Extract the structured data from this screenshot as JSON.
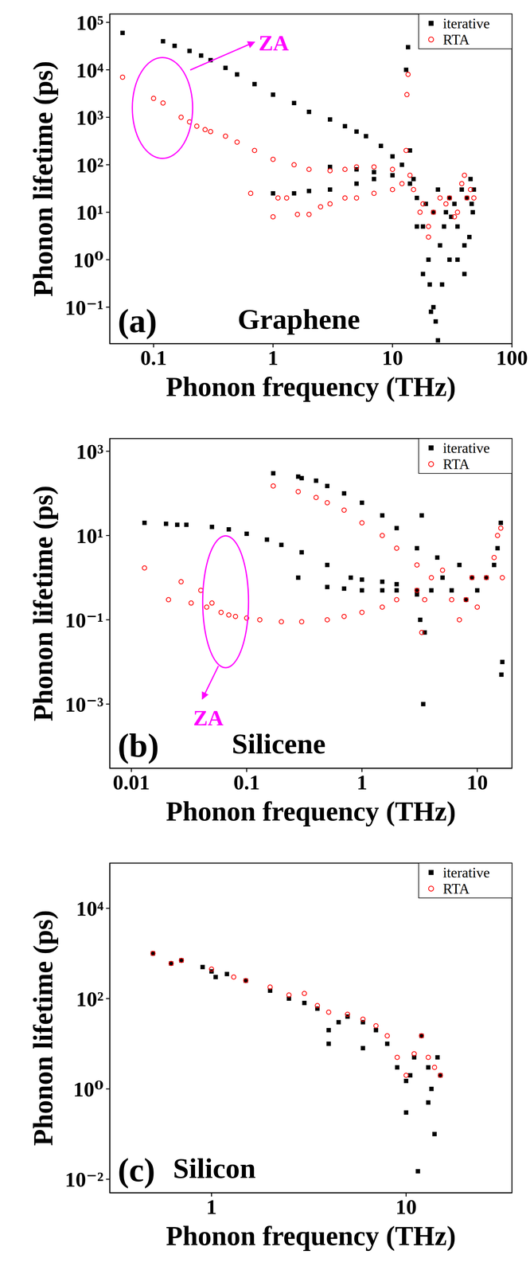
{
  "chart_data": [
    {
      "type": "scatter",
      "title": "Graphene",
      "annotations": [
        "(a)",
        "ZA"
      ],
      "x_label": "Phonon frequency (THz)",
      "y_label": "Phonon lifetime (ps)",
      "log": true,
      "legend": "upper right",
      "xlim": [
        0.043,
        100
      ],
      "xticks": [
        0.1,
        1,
        10,
        100
      ],
      "ylim": [
        0.017,
        150000
      ],
      "yticks": [
        {
          "value": 0.1,
          "label": "10⁻¹"
        },
        {
          "value": 1,
          "label": "10⁰"
        },
        {
          "value": 10,
          "label": "10¹"
        },
        {
          "value": 100,
          "label": "10²"
        },
        {
          "value": 1000,
          "label": "10³"
        },
        {
          "value": 10000,
          "label": "10⁴"
        },
        {
          "value": 100000,
          "label": "10⁵"
        }
      ],
      "series": [
        {
          "name": "iterative",
          "color": "#000000",
          "marker": "square",
          "x": [
            0.055,
            0.12,
            0.15,
            0.2,
            0.25,
            0.3,
            0.4,
            0.5,
            0.7,
            1,
            1.5,
            2,
            3,
            4,
            5,
            6,
            8,
            10,
            12,
            1,
            1.5,
            2,
            3,
            5,
            7,
            10,
            3,
            5,
            7,
            13,
            13.5,
            14,
            15,
            16,
            18,
            20,
            20.5,
            22,
            23,
            24,
            25,
            28,
            30,
            33,
            35,
            38,
            40,
            42,
            45,
            47,
            48,
            18,
            21,
            26,
            30,
            35,
            40,
            44,
            14,
            16,
            19,
            22,
            24,
            27,
            31,
            46
          ],
          "values": [
            60000,
            40000,
            32000,
            25000,
            20000,
            16000,
            11000,
            8000,
            5000,
            3000,
            2000,
            1300,
            900,
            650,
            500,
            400,
            250,
            150,
            100,
            25,
            25,
            28,
            30,
            40,
            50,
            60,
            90,
            80,
            70,
            10000,
            30000,
            200,
            50,
            20,
            5,
            1,
            0.3,
            0.1,
            0.05,
            0.02,
            2,
            10,
            20,
            15,
            5,
            30,
            2,
            20,
            50,
            10,
            30,
            0.5,
            0.08,
            0.3,
            1,
            1,
            0.5,
            3,
            40,
            5,
            15,
            10,
            30,
            5,
            8,
            15
          ]
        },
        {
          "name": "RTA",
          "color": "#ff0000",
          "marker": "open_circle",
          "x": [
            0.055,
            0.1,
            0.12,
            0.17,
            0.2,
            0.23,
            0.27,
            0.3,
            0.4,
            0.5,
            0.7,
            1,
            1.5,
            2,
            3,
            4,
            5,
            7,
            10,
            13,
            13.5,
            13.2,
            0.65,
            1,
            1.1,
            1.3,
            1.6,
            2,
            2.5,
            3,
            4,
            5,
            7,
            10,
            12,
            14,
            15,
            17,
            20,
            22,
            25,
            28,
            30,
            33,
            35,
            38,
            40,
            42,
            45,
            48,
            20,
            18
          ],
          "values": [
            7000,
            2500,
            2000,
            1000,
            800,
            650,
            550,
            500,
            400,
            300,
            200,
            130,
            100,
            80,
            75,
            80,
            90,
            90,
            80,
            200,
            8000,
            3000,
            25,
            8,
            20,
            20,
            9,
            9,
            13,
            15,
            20,
            20,
            25,
            30,
            40,
            60,
            30,
            10,
            5,
            10,
            20,
            15,
            20,
            8,
            10,
            40,
            60,
            20,
            30,
            20,
            3,
            15
          ]
        }
      ]
    },
    {
      "type": "scatter",
      "title": "Silicene",
      "annotations": [
        "(b)",
        "ZA"
      ],
      "x_label": "Phonon frequency (THz)",
      "y_label": "Phonon lifetime (ps)",
      "log": true,
      "legend": "upper right",
      "xlim": [
        0.0065,
        20
      ],
      "xticks": [
        0.01,
        0.1,
        1,
        10
      ],
      "ylim": [
        3e-05,
        2000
      ],
      "yticks": [
        {
          "value": 0.001,
          "label": "10⁻³"
        },
        {
          "value": 0.1,
          "label": "10⁻¹"
        },
        {
          "value": 10,
          "label": "10¹"
        },
        {
          "value": 1000,
          "label": "10³"
        }
      ],
      "series": [
        {
          "name": "iterative",
          "color": "#000000",
          "marker": "square",
          "x": [
            0.013,
            0.02,
            0.025,
            0.03,
            0.05,
            0.07,
            0.1,
            0.15,
            0.2,
            0.3,
            0.5,
            0.8,
            1,
            1.5,
            2,
            3,
            0.17,
            0.28,
            0.3,
            0.4,
            0.5,
            0.7,
            1,
            1.5,
            2,
            3,
            3.3,
            0.28,
            0.5,
            0.7,
            1,
            1.5,
            2,
            3,
            3.4,
            3.5,
            4,
            5,
            6,
            7,
            8,
            9,
            10,
            12,
            14,
            15,
            16,
            16.5,
            16.2,
            3.2,
            4.5
          ],
          "values": [
            20,
            19,
            18,
            18,
            16,
            14,
            11,
            8,
            6,
            4,
            2,
            1,
            0.9,
            0.8,
            0.7,
            0.5,
            300,
            250,
            230,
            200,
            150,
            100,
            60,
            30,
            15,
            5,
            30,
            1,
            0.6,
            0.55,
            0.5,
            0.5,
            0.5,
            0.4,
            0.001,
            0.05,
            0.5,
            1,
            0.5,
            2,
            0.3,
            1,
            0.5,
            1,
            2,
            5,
            20,
            0.01,
            0.005,
            0.1,
            3
          ]
        },
        {
          "name": "RTA",
          "color": "#ff0000",
          "marker": "open_circle",
          "x": [
            0.013,
            0.021,
            0.027,
            0.033,
            0.04,
            0.045,
            0.05,
            0.06,
            0.07,
            0.08,
            0.1,
            0.13,
            0.2,
            0.3,
            0.5,
            0.7,
            1,
            1.5,
            2,
            3,
            0.17,
            0.28,
            0.4,
            0.5,
            0.7,
            1,
            1.5,
            2,
            3,
            3.3,
            3.5,
            4,
            5,
            6,
            7,
            8,
            9,
            10,
            12,
            14,
            15,
            16,
            16.5
          ],
          "values": [
            1.7,
            0.3,
            0.8,
            0.25,
            0.5,
            0.2,
            0.25,
            0.15,
            0.13,
            0.12,
            0.11,
            0.1,
            0.09,
            0.09,
            0.1,
            0.12,
            0.15,
            0.2,
            0.3,
            0.5,
            150,
            110,
            80,
            60,
            40,
            20,
            10,
            5,
            2,
            0.05,
            0.3,
            1,
            1.5,
            0.3,
            0.1,
            0.3,
            1,
            0.2,
            1,
            3,
            10,
            15,
            1
          ]
        }
      ]
    },
    {
      "type": "scatter",
      "title": "Silicon",
      "annotations": [
        "(c)"
      ],
      "x_label": "Phonon frequency (THz)",
      "y_label": "Phonon lifetime (ps)",
      "log": true,
      "legend": "upper right",
      "xlim": [
        0.3,
        35
      ],
      "xticks": [
        1,
        10
      ],
      "ylim": [
        0.005,
        100000
      ],
      "yticks": [
        {
          "value": 0.01,
          "label": "10⁻²"
        },
        {
          "value": 1,
          "label": "10⁰"
        },
        {
          "value": 100,
          "label": "10²"
        },
        {
          "value": 10000,
          "label": "10⁴"
        }
      ],
      "series": [
        {
          "name": "iterative",
          "color": "#000000",
          "marker": "square",
          "x": [
            0.5,
            0.62,
            0.7,
            0.9,
            1,
            1.05,
            1.2,
            1.5,
            2,
            2.5,
            3,
            3.5,
            4,
            4.5,
            5,
            6,
            7,
            8,
            9,
            10,
            10.5,
            11,
            12,
            13,
            13.5,
            14,
            11.5,
            15,
            14.5,
            4,
            6,
            10,
            13
          ],
          "values": [
            1000,
            600,
            700,
            500,
            400,
            300,
            350,
            250,
            150,
            100,
            80,
            60,
            20,
            30,
            40,
            30,
            20,
            10,
            3,
            1.5,
            2,
            5,
            15,
            3,
            1,
            0.1,
            0.015,
            2,
            5,
            10,
            8,
            0.3,
            0.5
          ]
        },
        {
          "name": "RTA",
          "color": "#ff0000",
          "marker": "open_circle",
          "x": [
            0.5,
            0.62,
            0.7,
            1,
            1.3,
            1.5,
            2,
            2.5,
            3,
            3.5,
            4,
            5,
            6,
            7,
            8,
            9,
            10,
            11,
            12,
            13,
            14,
            15
          ],
          "values": [
            1000,
            600,
            700,
            450,
            300,
            250,
            180,
            120,
            130,
            70,
            50,
            45,
            35,
            25,
            15,
            5,
            2,
            6,
            15,
            5,
            3,
            2
          ]
        }
      ]
    }
  ]
}
